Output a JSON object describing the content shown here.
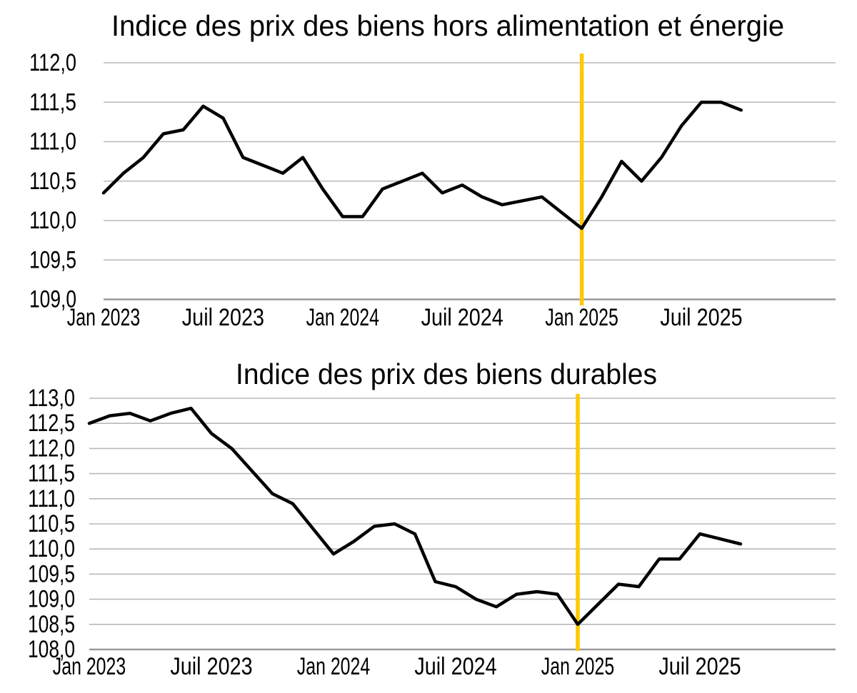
{
  "page": {
    "background": "#ffffff",
    "grid_color": "#b9b9b9",
    "axis_color": "#9a9a9a"
  },
  "chart_data": [
    {
      "id": "core-goods",
      "type": "line",
      "title": "Indice des prix des biens hors alimentation et énergie",
      "legend": "none",
      "grid": "horizontal",
      "line_color": "#000000",
      "ylim": [
        109.0,
        112.0
      ],
      "ytick_step": 0.5,
      "yticks": [
        {
          "value": 112.0,
          "label": "112,0"
        },
        {
          "value": 111.5,
          "label": "111,5"
        },
        {
          "value": 111.0,
          "label": "111,0"
        },
        {
          "value": 110.5,
          "label": "110,5"
        },
        {
          "value": 110.0,
          "label": "110,0"
        },
        {
          "value": 109.5,
          "label": "109,5"
        },
        {
          "value": 109.0,
          "label": "109,0"
        }
      ],
      "xticks": [
        {
          "index": 0,
          "label": "Jan 2023"
        },
        {
          "index": 6,
          "label": "Juil 2023"
        },
        {
          "index": 12,
          "label": "Jan 2024"
        },
        {
          "index": 18,
          "label": "Juil 2024"
        },
        {
          "index": 24,
          "label": "Jan 2025"
        },
        {
          "index": 30,
          "label": "Juil 2025"
        }
      ],
      "categories": [
        "2023-01",
        "2023-02",
        "2023-03",
        "2023-04",
        "2023-05",
        "2023-06",
        "2023-07",
        "2023-08",
        "2023-09",
        "2023-10",
        "2023-11",
        "2023-12",
        "2024-01",
        "2024-02",
        "2024-03",
        "2024-04",
        "2024-05",
        "2024-06",
        "2024-07",
        "2024-08",
        "2024-09",
        "2024-10",
        "2024-11",
        "2024-12",
        "2025-01",
        "2025-02",
        "2025-03",
        "2025-04",
        "2025-05",
        "2025-06",
        "2025-07",
        "2025-08",
        "2025-09"
      ],
      "values": [
        110.35,
        110.6,
        110.8,
        111.1,
        111.15,
        111.45,
        111.3,
        110.8,
        110.7,
        110.6,
        110.8,
        110.4,
        110.05,
        110.05,
        110.4,
        110.5,
        110.6,
        110.35,
        110.45,
        110.3,
        110.2,
        110.25,
        110.3,
        110.1,
        109.9,
        110.3,
        110.75,
        110.5,
        110.8,
        111.2,
        111.5,
        111.5,
        111.4
      ],
      "reference_line": {
        "category": "2025-01",
        "index": 24,
        "color": "#FFC800"
      }
    },
    {
      "id": "durables",
      "type": "line",
      "title": "Indice des prix des biens durables",
      "legend": "none",
      "grid": "horizontal",
      "line_color": "#000000",
      "ylim": [
        108.0,
        113.0
      ],
      "ytick_step": 0.5,
      "yticks": [
        {
          "value": 113.0,
          "label": "113,0"
        },
        {
          "value": 112.5,
          "label": "112,5"
        },
        {
          "value": 112.0,
          "label": "112,0"
        },
        {
          "value": 111.5,
          "label": "111,5"
        },
        {
          "value": 111.0,
          "label": "111,0"
        },
        {
          "value": 110.5,
          "label": "110,5"
        },
        {
          "value": 110.0,
          "label": "110,0"
        },
        {
          "value": 109.5,
          "label": "109,5"
        },
        {
          "value": 109.0,
          "label": "109,0"
        },
        {
          "value": 108.5,
          "label": "108,5"
        },
        {
          "value": 108.0,
          "label": "108,0"
        }
      ],
      "xticks": [
        {
          "index": 0,
          "label": "Jan 2023"
        },
        {
          "index": 6,
          "label": "Juil 2023"
        },
        {
          "index": 12,
          "label": "Jan 2024"
        },
        {
          "index": 18,
          "label": "Juil 2024"
        },
        {
          "index": 24,
          "label": "Jan 2025"
        },
        {
          "index": 30,
          "label": "Juil 2025"
        }
      ],
      "categories": [
        "2023-01",
        "2023-02",
        "2023-03",
        "2023-04",
        "2023-05",
        "2023-06",
        "2023-07",
        "2023-08",
        "2023-09",
        "2023-10",
        "2023-11",
        "2023-12",
        "2024-01",
        "2024-02",
        "2024-03",
        "2024-04",
        "2024-05",
        "2024-06",
        "2024-07",
        "2024-08",
        "2024-09",
        "2024-10",
        "2024-11",
        "2024-12",
        "2025-01",
        "2025-02",
        "2025-03",
        "2025-04",
        "2025-05",
        "2025-06",
        "2025-07",
        "2025-08",
        "2025-09"
      ],
      "values": [
        112.5,
        112.65,
        112.7,
        112.55,
        112.7,
        112.8,
        112.3,
        112.0,
        111.55,
        111.1,
        110.9,
        110.4,
        109.9,
        110.15,
        110.45,
        110.5,
        110.3,
        109.35,
        109.25,
        109.0,
        108.85,
        109.1,
        109.15,
        109.1,
        108.5,
        108.9,
        109.3,
        109.25,
        109.8,
        109.8,
        110.3,
        110.2,
        110.1
      ],
      "reference_line": {
        "category": "2025-01",
        "index": 24,
        "color": "#FFC800"
      }
    }
  ]
}
